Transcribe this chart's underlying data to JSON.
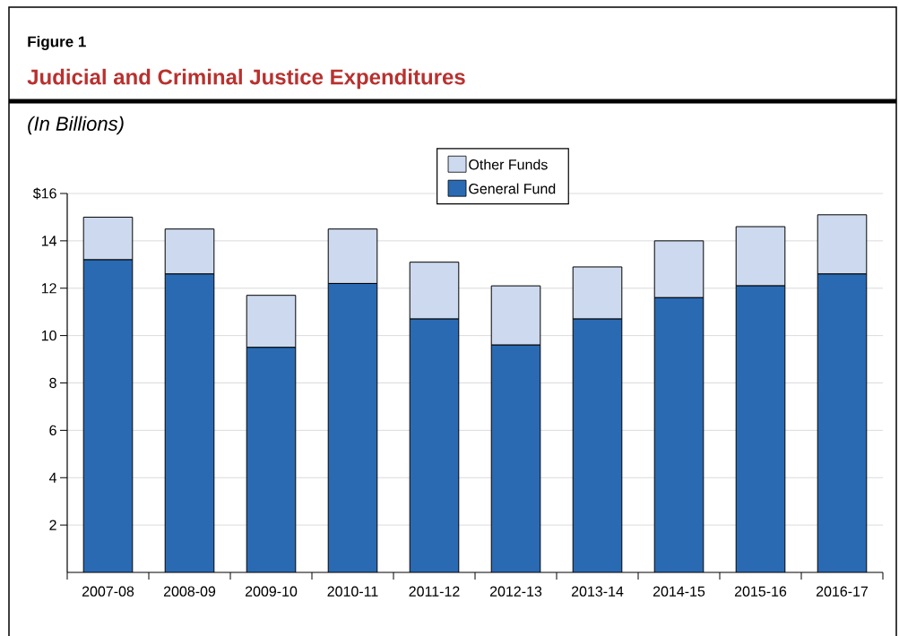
{
  "chart_data": {
    "type": "bar",
    "title": "Judicial and Criminal Justice Expenditures",
    "subtitle": "(In Billions)",
    "annotations": [
      "Figure 1"
    ],
    "categories": [
      "2007-08",
      "2008-09",
      "2009-10",
      "2010-11",
      "2011-12",
      "2012-13",
      "2013-14",
      "2014-15",
      "2015-16",
      "2016-17"
    ],
    "series": [
      {
        "name": "General Fund",
        "color": "#2a6ab3",
        "values": [
          13.2,
          12.6,
          9.5,
          12.2,
          10.7,
          9.6,
          10.7,
          11.6,
          12.1,
          12.6
        ]
      },
      {
        "name": "Other Funds",
        "color": "#ccd9ee",
        "values": [
          1.8,
          1.9,
          2.2,
          2.3,
          2.4,
          2.5,
          2.2,
          2.4,
          2.5,
          2.5
        ]
      }
    ],
    "stacked": true,
    "ylim": [
      0,
      16
    ],
    "yticks": [
      2,
      4,
      6,
      8,
      10,
      12,
      14,
      {
        "value": 16,
        "label": "$16"
      }
    ],
    "grid": "y",
    "legend": "top"
  }
}
